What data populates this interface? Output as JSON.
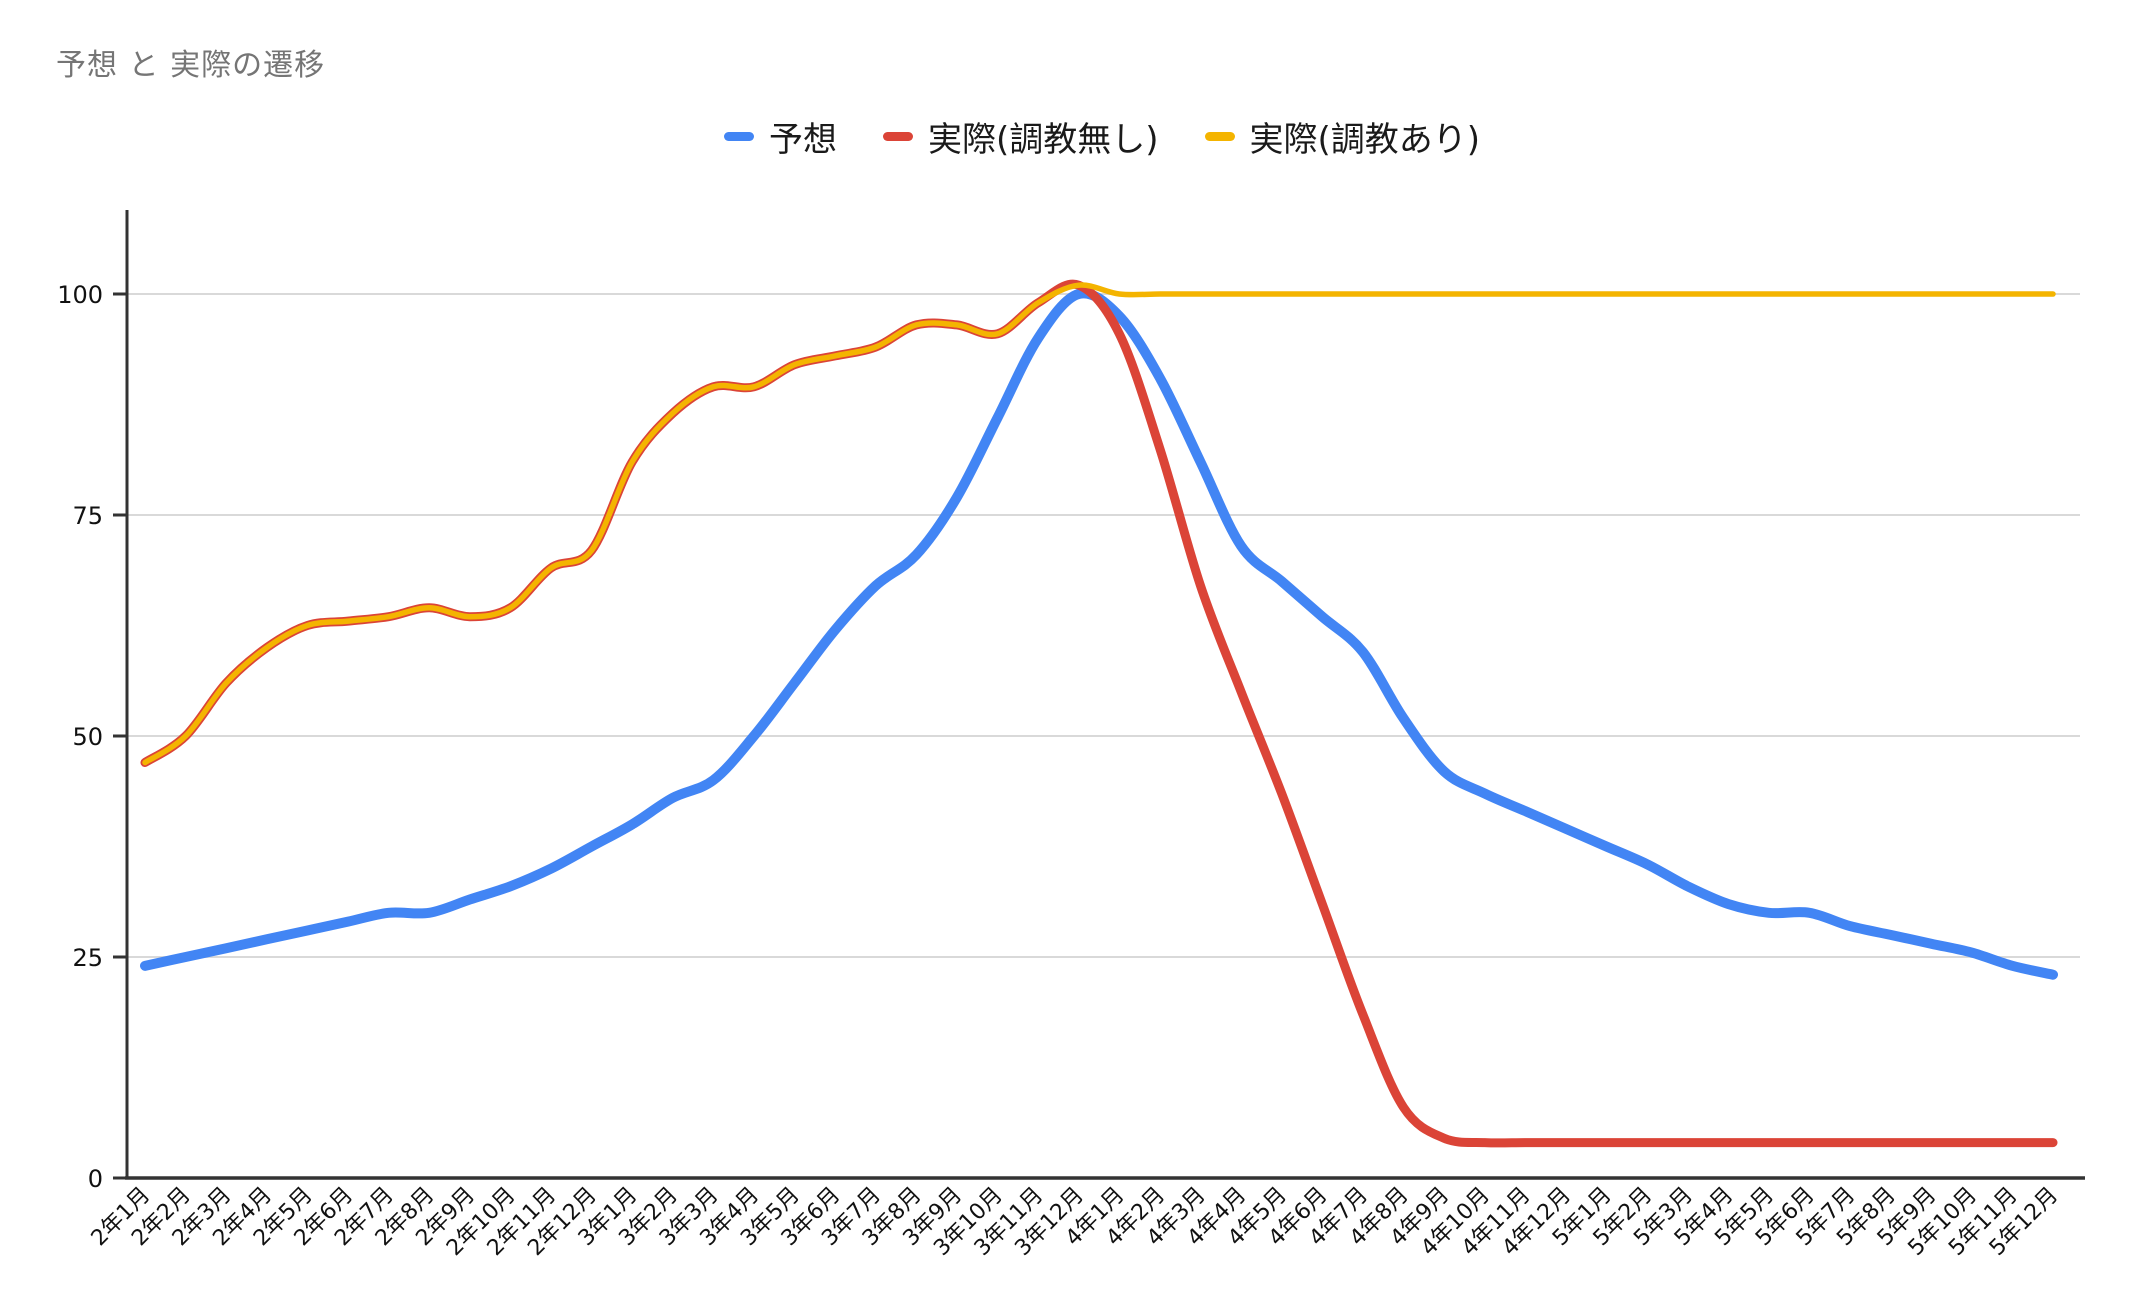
{
  "title": "予想 と 実際の遷移",
  "chart_data": {
    "type": "line",
    "title": "予想 と 実際の遷移",
    "smooth": true,
    "grid": true,
    "legend_position": "top-center",
    "background": "#ffffff",
    "gridline_color": "#d9d9d9",
    "axis_color": "#333333",
    "ylim": [
      0,
      100
    ],
    "y_ticks": [
      0,
      25,
      50,
      75,
      100
    ],
    "y_tick_labels": [
      "0",
      "25",
      "50",
      "75",
      "100"
    ],
    "xlabel": "",
    "ylabel": "",
    "categories": [
      "2年1月",
      "2年2月",
      "2年3月",
      "2年4月",
      "2年5月",
      "2年6月",
      "2年7月",
      "2年8月",
      "2年9月",
      "2年10月",
      "2年11月",
      "2年12月",
      "3年1月",
      "3年2月",
      "3年3月",
      "3年4月",
      "3年5月",
      "3年6月",
      "3年7月",
      "3年8月",
      "3年9月",
      "3年10月",
      "3年11月",
      "3年12月",
      "4年1月",
      "4年2月",
      "4年3月",
      "4年4月",
      "4年5月",
      "4年6月",
      "4年7月",
      "4年8月",
      "4年9月",
      "4年10月",
      "4年11月",
      "4年12月",
      "5年1月",
      "5年2月",
      "5年3月",
      "5年4月",
      "5年5月",
      "5年6月",
      "5年7月",
      "5年8月",
      "5年9月",
      "5年10月",
      "5年11月",
      "5年12月"
    ],
    "series": [
      {
        "id": "forecast",
        "name": "予想",
        "color": "#4285F4",
        "stroke_width": 10,
        "values": [
          24,
          25,
          26,
          27,
          28,
          29,
          30,
          30,
          31.5,
          33,
          35,
          37.5,
          40,
          43,
          45,
          50,
          56,
          62,
          67,
          70.5,
          77,
          86,
          95,
          100,
          97.5,
          90.5,
          81,
          71.5,
          67.5,
          63.5,
          59.5,
          52,
          46,
          43.5,
          41.5,
          39.5,
          37.5,
          35.5,
          33,
          31,
          30,
          30,
          28.5,
          27.5,
          26.5,
          25.5,
          24,
          23
        ]
      },
      {
        "id": "actual-untrained",
        "name": "実際(調教無し)",
        "color": "#DB4437",
        "stroke_width": 9,
        "values": [
          47,
          50,
          56,
          60,
          62.5,
          63,
          63.5,
          64.5,
          63.5,
          64.5,
          69,
          71,
          81,
          86.5,
          89.5,
          89.5,
          92,
          93,
          94,
          96.5,
          96.5,
          95.5,
          99,
          101,
          95.5,
          82.5,
          67,
          55,
          43.5,
          31,
          18.5,
          8,
          4.5,
          4,
          4,
          4,
          4,
          4,
          4,
          4,
          4,
          4,
          4,
          4,
          4,
          4,
          4,
          4
        ]
      },
      {
        "id": "actual-trained",
        "name": "実際(調教あり)",
        "color": "#F4B400",
        "stroke_width": 5.5,
        "values": [
          47,
          50,
          56,
          60,
          62.5,
          63,
          63.5,
          64.5,
          63.5,
          64.5,
          69,
          71,
          81,
          86.5,
          89.5,
          89.5,
          92,
          93,
          94,
          96.5,
          96.5,
          95.5,
          99,
          101,
          100,
          100,
          100,
          100,
          100,
          100,
          100,
          100,
          100,
          100,
          100,
          100,
          100,
          100,
          100,
          100,
          100,
          100,
          100,
          100,
          100,
          100,
          100,
          100
        ]
      }
    ]
  }
}
